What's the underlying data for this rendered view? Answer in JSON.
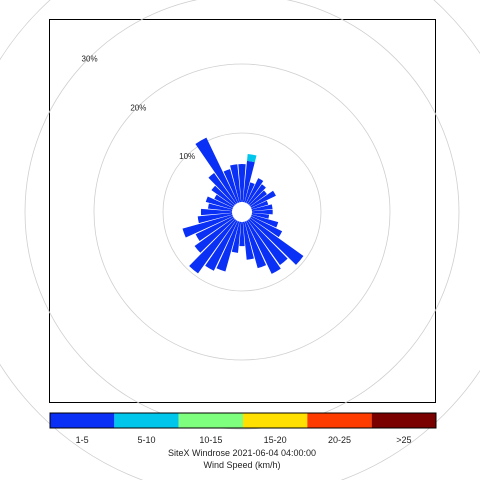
{
  "chart_data": {
    "type": "polar-bar",
    "caption": {
      "title": "SiteX Windrose 2021-06-04 04:00:00",
      "axis_label": "Wind Speed (km/h)"
    },
    "rings": [
      {
        "value": 10,
        "label": "10%"
      },
      {
        "value": 20,
        "label": "20%"
      },
      {
        "value": 30,
        "label": "30%"
      },
      {
        "value": 40,
        "label": ""
      }
    ],
    "speed_bins": [
      {
        "label": "1-5",
        "color": "#0a2ff5"
      },
      {
        "label": "5-10",
        "color": "#00c6ec"
      },
      {
        "label": "10-15",
        "color": "#7eff7e"
      },
      {
        "label": "15-20",
        "color": "#ffe000"
      },
      {
        "label": "20-25",
        "color": "#ff3c00"
      },
      {
        "label": ">25",
        "color": "#7a0000"
      }
    ],
    "calm_label": "",
    "direction_width_deg": 10,
    "sectors": [
      {
        "direction": 0,
        "values": [
          5.5,
          0,
          0,
          0,
          0,
          0
        ]
      },
      {
        "direction": 10,
        "values": [
          6.0,
          1.0,
          0,
          0,
          0,
          0
        ]
      },
      {
        "direction": 20,
        "values": [
          3.0,
          0,
          0,
          0,
          0,
          0
        ]
      },
      {
        "direction": 30,
        "values": [
          4.0,
          0,
          0,
          0,
          0,
          0
        ]
      },
      {
        "direction": 40,
        "values": [
          3.5,
          0,
          0,
          0,
          0,
          0
        ]
      },
      {
        "direction": 50,
        "values": [
          3.0,
          0,
          0,
          0,
          0,
          0
        ]
      },
      {
        "direction": 60,
        "values": [
          4.0,
          0,
          0,
          0,
          0,
          0
        ]
      },
      {
        "direction": 70,
        "values": [
          2.5,
          0,
          0,
          0,
          0,
          0
        ]
      },
      {
        "direction": 80,
        "values": [
          3.0,
          0,
          0,
          0,
          0,
          0
        ]
      },
      {
        "direction": 90,
        "values": [
          3.0,
          0,
          0,
          0,
          0,
          0
        ]
      },
      {
        "direction": 100,
        "values": [
          2.5,
          0,
          0,
          0,
          0,
          0
        ]
      },
      {
        "direction": 110,
        "values": [
          4.0,
          0,
          0,
          0,
          0,
          0
        ]
      },
      {
        "direction": 120,
        "values": [
          5.0,
          0,
          0,
          0,
          0,
          0
        ]
      },
      {
        "direction": 130,
        "values": [
          9.5,
          0,
          0,
          0,
          0,
          0
        ]
      },
      {
        "direction": 140,
        "values": [
          8.0,
          0,
          0,
          0,
          0,
          0
        ]
      },
      {
        "direction": 150,
        "values": [
          8.5,
          0,
          0,
          0,
          0,
          0
        ]
      },
      {
        "direction": 160,
        "values": [
          7.0,
          0,
          0,
          0,
          0,
          0
        ]
      },
      {
        "direction": 170,
        "values": [
          5.5,
          0,
          0,
          0,
          0,
          0
        ]
      },
      {
        "direction": 180,
        "values": [
          3.5,
          0,
          0,
          0,
          0,
          0
        ]
      },
      {
        "direction": 190,
        "values": [
          4.5,
          0,
          0,
          0,
          0,
          0
        ]
      },
      {
        "direction": 200,
        "values": [
          7.5,
          0,
          0,
          0,
          0,
          0
        ]
      },
      {
        "direction": 210,
        "values": [
          8.0,
          0,
          0,
          0,
          0,
          0
        ]
      },
      {
        "direction": 220,
        "values": [
          9.5,
          0,
          0,
          0,
          0,
          0
        ]
      },
      {
        "direction": 230,
        "values": [
          7.0,
          0,
          0,
          0,
          0,
          0
        ]
      },
      {
        "direction": 240,
        "values": [
          6.0,
          0,
          0,
          0,
          0,
          0
        ]
      },
      {
        "direction": 250,
        "values": [
          7.5,
          0,
          0,
          0,
          0,
          0
        ]
      },
      {
        "direction": 260,
        "values": [
          5.0,
          0,
          0,
          0,
          0,
          0
        ]
      },
      {
        "direction": 270,
        "values": [
          4.5,
          0,
          0,
          0,
          0,
          0
        ]
      },
      {
        "direction": 280,
        "values": [
          3.5,
          0,
          0,
          0,
          0,
          0
        ]
      },
      {
        "direction": 290,
        "values": [
          4.0,
          0,
          0,
          0,
          0,
          0
        ]
      },
      {
        "direction": 300,
        "values": [
          3.0,
          0,
          0,
          0,
          0,
          0
        ]
      },
      {
        "direction": 310,
        "values": [
          4.0,
          0,
          0,
          0,
          0,
          0
        ]
      },
      {
        "direction": 320,
        "values": [
          5.5,
          0,
          0,
          0,
          0,
          0
        ]
      },
      {
        "direction": 330,
        "values": [
          10.5,
          0,
          0,
          0,
          0,
          0
        ]
      },
      {
        "direction": 340,
        "values": [
          5.0,
          0,
          0,
          0,
          0,
          0
        ]
      },
      {
        "direction": 350,
        "values": [
          5.5,
          0,
          0,
          0,
          0,
          0
        ]
      }
    ]
  }
}
